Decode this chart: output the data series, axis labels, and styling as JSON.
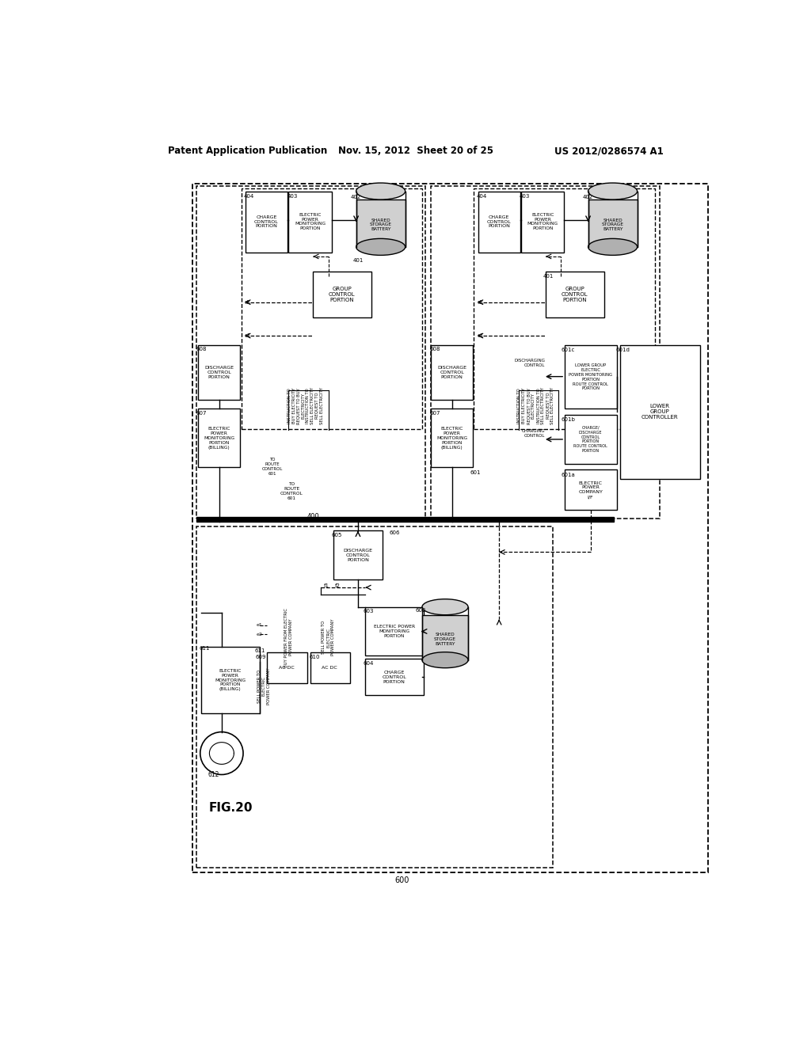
{
  "title_left": "Patent Application Publication",
  "title_center": "Nov. 15, 2012  Sheet 20 of 25",
  "title_right": "US 2012/0286574 A1",
  "fig_label": "FIG.20",
  "background": "#ffffff"
}
